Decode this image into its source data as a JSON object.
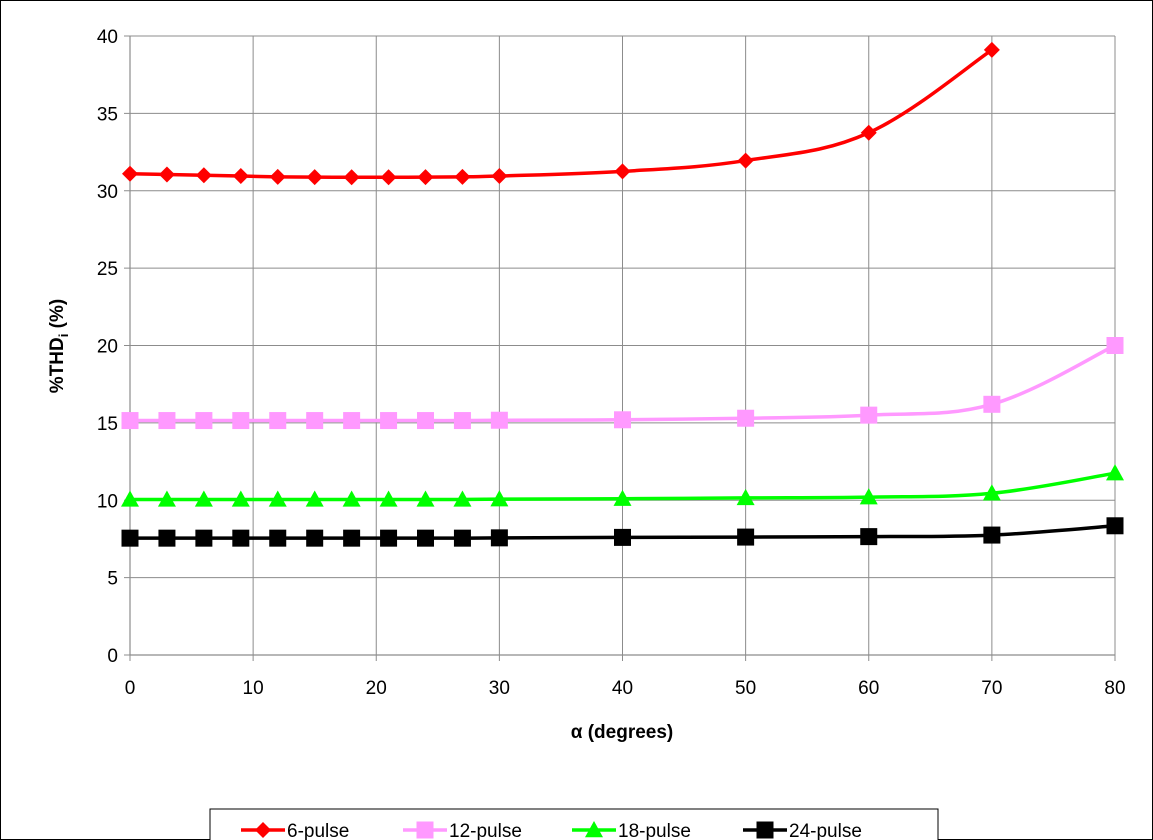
{
  "chart_data": {
    "type": "line",
    "xlabel": "α (degrees)",
    "ylabel": {
      "prefix": "%THD",
      "subscript": "i",
      "suffix": " (%)"
    },
    "xlim": [
      0,
      80
    ],
    "ylim": [
      0,
      40
    ],
    "xticks": [
      0,
      10,
      20,
      30,
      40,
      50,
      60,
      70,
      80
    ],
    "yticks": [
      0,
      5,
      10,
      15,
      20,
      25,
      30,
      35,
      40
    ],
    "grid": true,
    "legend_position": "bottom",
    "series": [
      {
        "name": "6-pulse",
        "color": "#ff0000",
        "marker": "diamond",
        "x": [
          0,
          3,
          6,
          9,
          12,
          15,
          18,
          21,
          24,
          27,
          30,
          40,
          50,
          60,
          70
        ],
        "y": [
          31.1,
          31.05,
          31.0,
          30.95,
          30.9,
          30.88,
          30.87,
          30.87,
          30.88,
          30.9,
          30.95,
          31.25,
          31.95,
          33.75,
          39.1
        ]
      },
      {
        "name": "12-pulse",
        "color": "#ff99ff",
        "marker": "square",
        "x": [
          0,
          3,
          6,
          9,
          12,
          15,
          18,
          21,
          24,
          27,
          30,
          40,
          50,
          60,
          70,
          80
        ],
        "y": [
          15.15,
          15.15,
          15.15,
          15.15,
          15.15,
          15.15,
          15.15,
          15.15,
          15.15,
          15.15,
          15.17,
          15.2,
          15.3,
          15.5,
          16.2,
          20.0
        ]
      },
      {
        "name": "18-pulse",
        "color": "#00ff00",
        "marker": "triangle",
        "x": [
          0,
          3,
          6,
          9,
          12,
          15,
          18,
          21,
          24,
          27,
          30,
          40,
          50,
          60,
          70,
          80
        ],
        "y": [
          10.05,
          10.05,
          10.05,
          10.05,
          10.05,
          10.05,
          10.05,
          10.05,
          10.05,
          10.05,
          10.07,
          10.1,
          10.15,
          10.2,
          10.45,
          11.75
        ]
      },
      {
        "name": "24-pulse",
        "color": "#000000",
        "marker": "square",
        "x": [
          0,
          3,
          6,
          9,
          12,
          15,
          18,
          21,
          24,
          27,
          30,
          40,
          50,
          60,
          70,
          80
        ],
        "y": [
          7.55,
          7.55,
          7.55,
          7.55,
          7.55,
          7.55,
          7.55,
          7.55,
          7.55,
          7.55,
          7.57,
          7.6,
          7.62,
          7.65,
          7.75,
          8.35
        ]
      }
    ]
  }
}
